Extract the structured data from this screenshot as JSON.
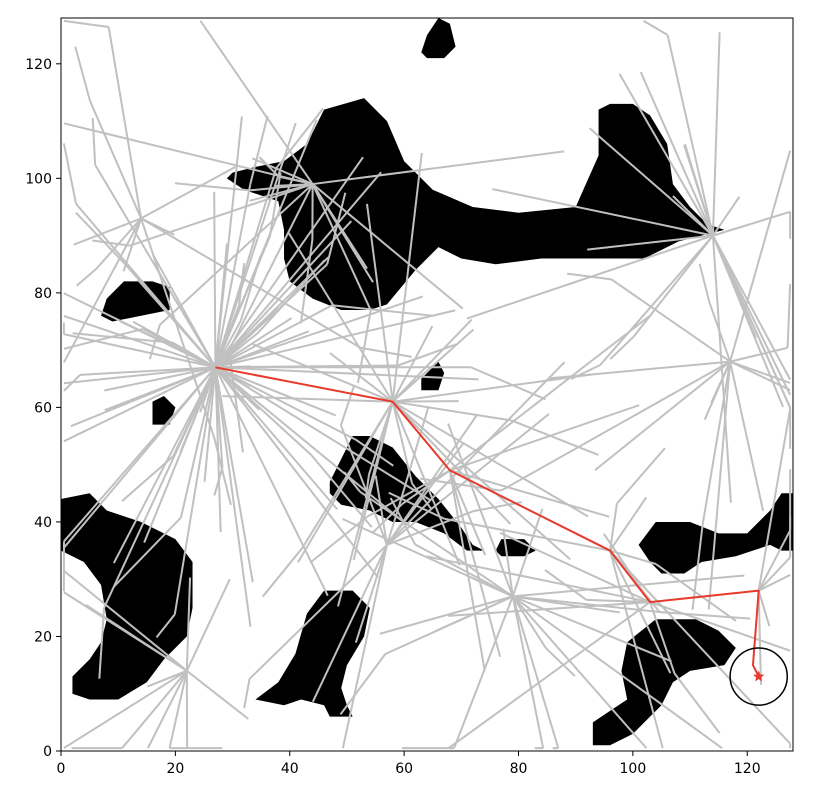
{
  "chart_data": {
    "type": "scatter",
    "title": "",
    "xlabel": "",
    "ylabel": "",
    "xlim": [
      0,
      128
    ],
    "ylim": [
      0,
      128
    ],
    "grid": false,
    "x_ticks": [
      0,
      20,
      40,
      60,
      80,
      100,
      120
    ],
    "y_ticks": [
      0,
      20,
      40,
      60,
      80,
      100,
      120
    ],
    "colors": {
      "tree": "#c0c0c0",
      "obstacle": "#000000",
      "path": "#e8392a",
      "goal_marker": "#e8392a",
      "goal_region": "#000000"
    },
    "obstacles": [
      [
        [
          46,
          112
        ],
        [
          53,
          114
        ],
        [
          57,
          110
        ],
        [
          60,
          103
        ],
        [
          65,
          98
        ],
        [
          72,
          95
        ],
        [
          80,
          94
        ],
        [
          90,
          95
        ],
        [
          94,
          104
        ],
        [
          94,
          112
        ],
        [
          96,
          113
        ],
        [
          100,
          113
        ],
        [
          103,
          111
        ],
        [
          106,
          106
        ],
        [
          107,
          99
        ],
        [
          110,
          95
        ],
        [
          113,
          92
        ],
        [
          116,
          91
        ],
        [
          108,
          89
        ],
        [
          102,
          86
        ],
        [
          96,
          86
        ],
        [
          84,
          86
        ],
        [
          76,
          85
        ],
        [
          70,
          86
        ],
        [
          66,
          88
        ],
        [
          62,
          84
        ],
        [
          57,
          78
        ],
        [
          54,
          77
        ],
        [
          49,
          77
        ],
        [
          44,
          79
        ],
        [
          40,
          82
        ],
        [
          39,
          86
        ],
        [
          39,
          91
        ],
        [
          38,
          96
        ],
        [
          35,
          97
        ],
        [
          32,
          98
        ],
        [
          29,
          100
        ],
        [
          30,
          101
        ],
        [
          34,
          102
        ],
        [
          39,
          103
        ],
        [
          43,
          106
        ]
      ],
      [
        [
          0,
          44
        ],
        [
          5,
          45
        ],
        [
          8,
          42
        ],
        [
          14,
          40
        ],
        [
          20,
          37
        ],
        [
          23,
          33
        ],
        [
          23,
          25
        ],
        [
          22,
          20
        ],
        [
          18,
          16
        ],
        [
          15,
          12
        ],
        [
          10,
          9
        ],
        [
          5,
          9
        ],
        [
          2,
          10
        ],
        [
          2,
          13
        ],
        [
          5,
          16
        ],
        [
          7,
          19
        ],
        [
          8,
          23
        ],
        [
          7,
          29
        ],
        [
          4,
          33
        ],
        [
          0,
          35
        ]
      ],
      [
        [
          34,
          9
        ],
        [
          38,
          12
        ],
        [
          41,
          17
        ],
        [
          43,
          24
        ],
        [
          46,
          28
        ],
        [
          51,
          28
        ],
        [
          54,
          25
        ],
        [
          53,
          20
        ],
        [
          50,
          15
        ],
        [
          49,
          11
        ],
        [
          50,
          8
        ],
        [
          51,
          6
        ],
        [
          47,
          6
        ],
        [
          46,
          8
        ],
        [
          42,
          9
        ],
        [
          39,
          8
        ]
      ],
      [
        [
          47,
          47
        ],
        [
          49,
          51
        ],
        [
          51,
          55
        ],
        [
          54,
          55
        ],
        [
          58,
          53
        ],
        [
          62,
          48
        ],
        [
          66,
          44
        ],
        [
          70,
          39
        ],
        [
          72,
          36
        ],
        [
          74,
          35
        ],
        [
          71,
          35
        ],
        [
          67,
          38
        ],
        [
          62,
          40
        ],
        [
          58,
          40
        ],
        [
          54,
          42
        ],
        [
          49,
          43
        ],
        [
          47,
          45
        ]
      ],
      [
        [
          99,
          19
        ],
        [
          104,
          23
        ],
        [
          111,
          23
        ],
        [
          115,
          21
        ],
        [
          118,
          18
        ],
        [
          116,
          15
        ],
        [
          110,
          14
        ],
        [
          107,
          12
        ],
        [
          105,
          8
        ],
        [
          102,
          5
        ],
        [
          100,
          3
        ],
        [
          96,
          1
        ],
        [
          93,
          1
        ],
        [
          93,
          5
        ],
        [
          96,
          7
        ],
        [
          99,
          9
        ],
        [
          98,
          14
        ]
      ],
      [
        [
          101,
          36
        ],
        [
          104,
          40
        ],
        [
          110,
          40
        ],
        [
          115,
          38
        ],
        [
          120,
          38
        ],
        [
          124,
          42
        ],
        [
          126,
          45
        ],
        [
          128,
          45
        ],
        [
          128,
          35
        ],
        [
          126,
          35
        ],
        [
          124,
          36
        ],
        [
          118,
          34
        ],
        [
          112,
          33
        ],
        [
          109,
          31
        ],
        [
          105,
          31
        ],
        [
          103,
          33
        ]
      ],
      [
        [
          8,
          79
        ],
        [
          11,
          82
        ],
        [
          16,
          82
        ],
        [
          19,
          81
        ],
        [
          19,
          77
        ],
        [
          14,
          76
        ],
        [
          9,
          75
        ],
        [
          7,
          76
        ]
      ],
      [
        [
          16,
          57
        ],
        [
          16,
          61
        ],
        [
          18,
          62
        ],
        [
          20,
          60
        ],
        [
          19,
          57
        ]
      ],
      [
        [
          63,
          65
        ],
        [
          66,
          68
        ],
        [
          67,
          66
        ],
        [
          66,
          63
        ],
        [
          63,
          63
        ]
      ],
      [
        [
          76,
          35
        ],
        [
          77,
          37
        ],
        [
          81,
          37
        ],
        [
          83,
          35
        ],
        [
          81,
          34
        ],
        [
          77,
          34
        ]
      ],
      [
        [
          63,
          122
        ],
        [
          64,
          125
        ],
        [
          66,
          128
        ],
        [
          68,
          127
        ],
        [
          69,
          123
        ],
        [
          67,
          121
        ],
        [
          64,
          121
        ]
      ]
    ],
    "path": {
      "x": [
        27,
        58,
        68,
        96,
        103,
        122,
        121,
        122
      ],
      "y": [
        67,
        61,
        49,
        35,
        26,
        28,
        15,
        13
      ]
    },
    "goal": {
      "x": 122,
      "y": 13,
      "radius": 5
    }
  }
}
